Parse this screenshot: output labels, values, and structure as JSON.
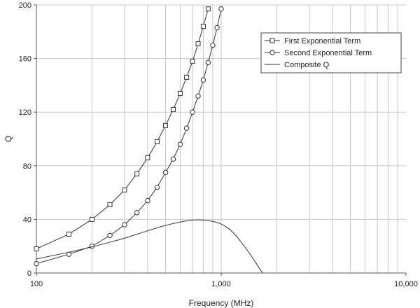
{
  "chart_data": {
    "type": "line",
    "title": "",
    "xlabel": "Frequency (MHz)",
    "ylabel": "Q",
    "x_scale": "log",
    "xlim": [
      100,
      10000
    ],
    "ylim": [
      0,
      200
    ],
    "x_ticks": [
      {
        "value": 100,
        "label": "100"
      },
      {
        "value": 1000,
        "label": "1,000"
      },
      {
        "value": 10000,
        "label": "10,000"
      }
    ],
    "y_ticks": [
      {
        "value": 0,
        "label": "0"
      },
      {
        "value": 40,
        "label": "40"
      },
      {
        "value": 80,
        "label": "80"
      },
      {
        "value": 120,
        "label": "120"
      },
      {
        "value": 160,
        "label": "160"
      },
      {
        "value": 200,
        "label": "200"
      }
    ],
    "grid": {
      "x_major": true,
      "x_minor": true,
      "y_major": true
    },
    "legend_position": "top-right",
    "series": [
      {
        "name": "First Exponential Term",
        "marker": "square",
        "color": "#333333",
        "x": [
          100,
          150,
          200,
          250,
          300,
          350,
          400,
          450,
          500,
          550,
          600,
          650,
          700,
          750,
          800,
          850
        ],
        "y": [
          18,
          29,
          40,
          51,
          62,
          74,
          86,
          98,
          110,
          122,
          134,
          146,
          158,
          171,
          184,
          197
        ]
      },
      {
        "name": "Second Exponential Term",
        "marker": "circle",
        "color": "#333333",
        "x": [
          100,
          150,
          200,
          250,
          300,
          350,
          400,
          450,
          500,
          550,
          600,
          650,
          700,
          750,
          800,
          850,
          900,
          950,
          1000
        ],
        "y": [
          7,
          14,
          20,
          28,
          36,
          45,
          54,
          64,
          75,
          85,
          96,
          108,
          120,
          132,
          144,
          157,
          170,
          183,
          197
        ]
      },
      {
        "name": "Composite Q",
        "marker": "none",
        "color": "#333333",
        "x": [
          100,
          150,
          200,
          250,
          300,
          400,
          500,
          600,
          700,
          800,
          900,
          1000,
          1100,
          1200,
          1300,
          1400,
          1500,
          1600,
          1700,
          1750
        ],
        "y": [
          10.5,
          15.5,
          19.5,
          23,
          26,
          31.5,
          35.5,
          38,
          39.5,
          39.5,
          38.5,
          36.5,
          33,
          28,
          22,
          16,
          10,
          4,
          -1,
          -3
        ]
      }
    ]
  }
}
